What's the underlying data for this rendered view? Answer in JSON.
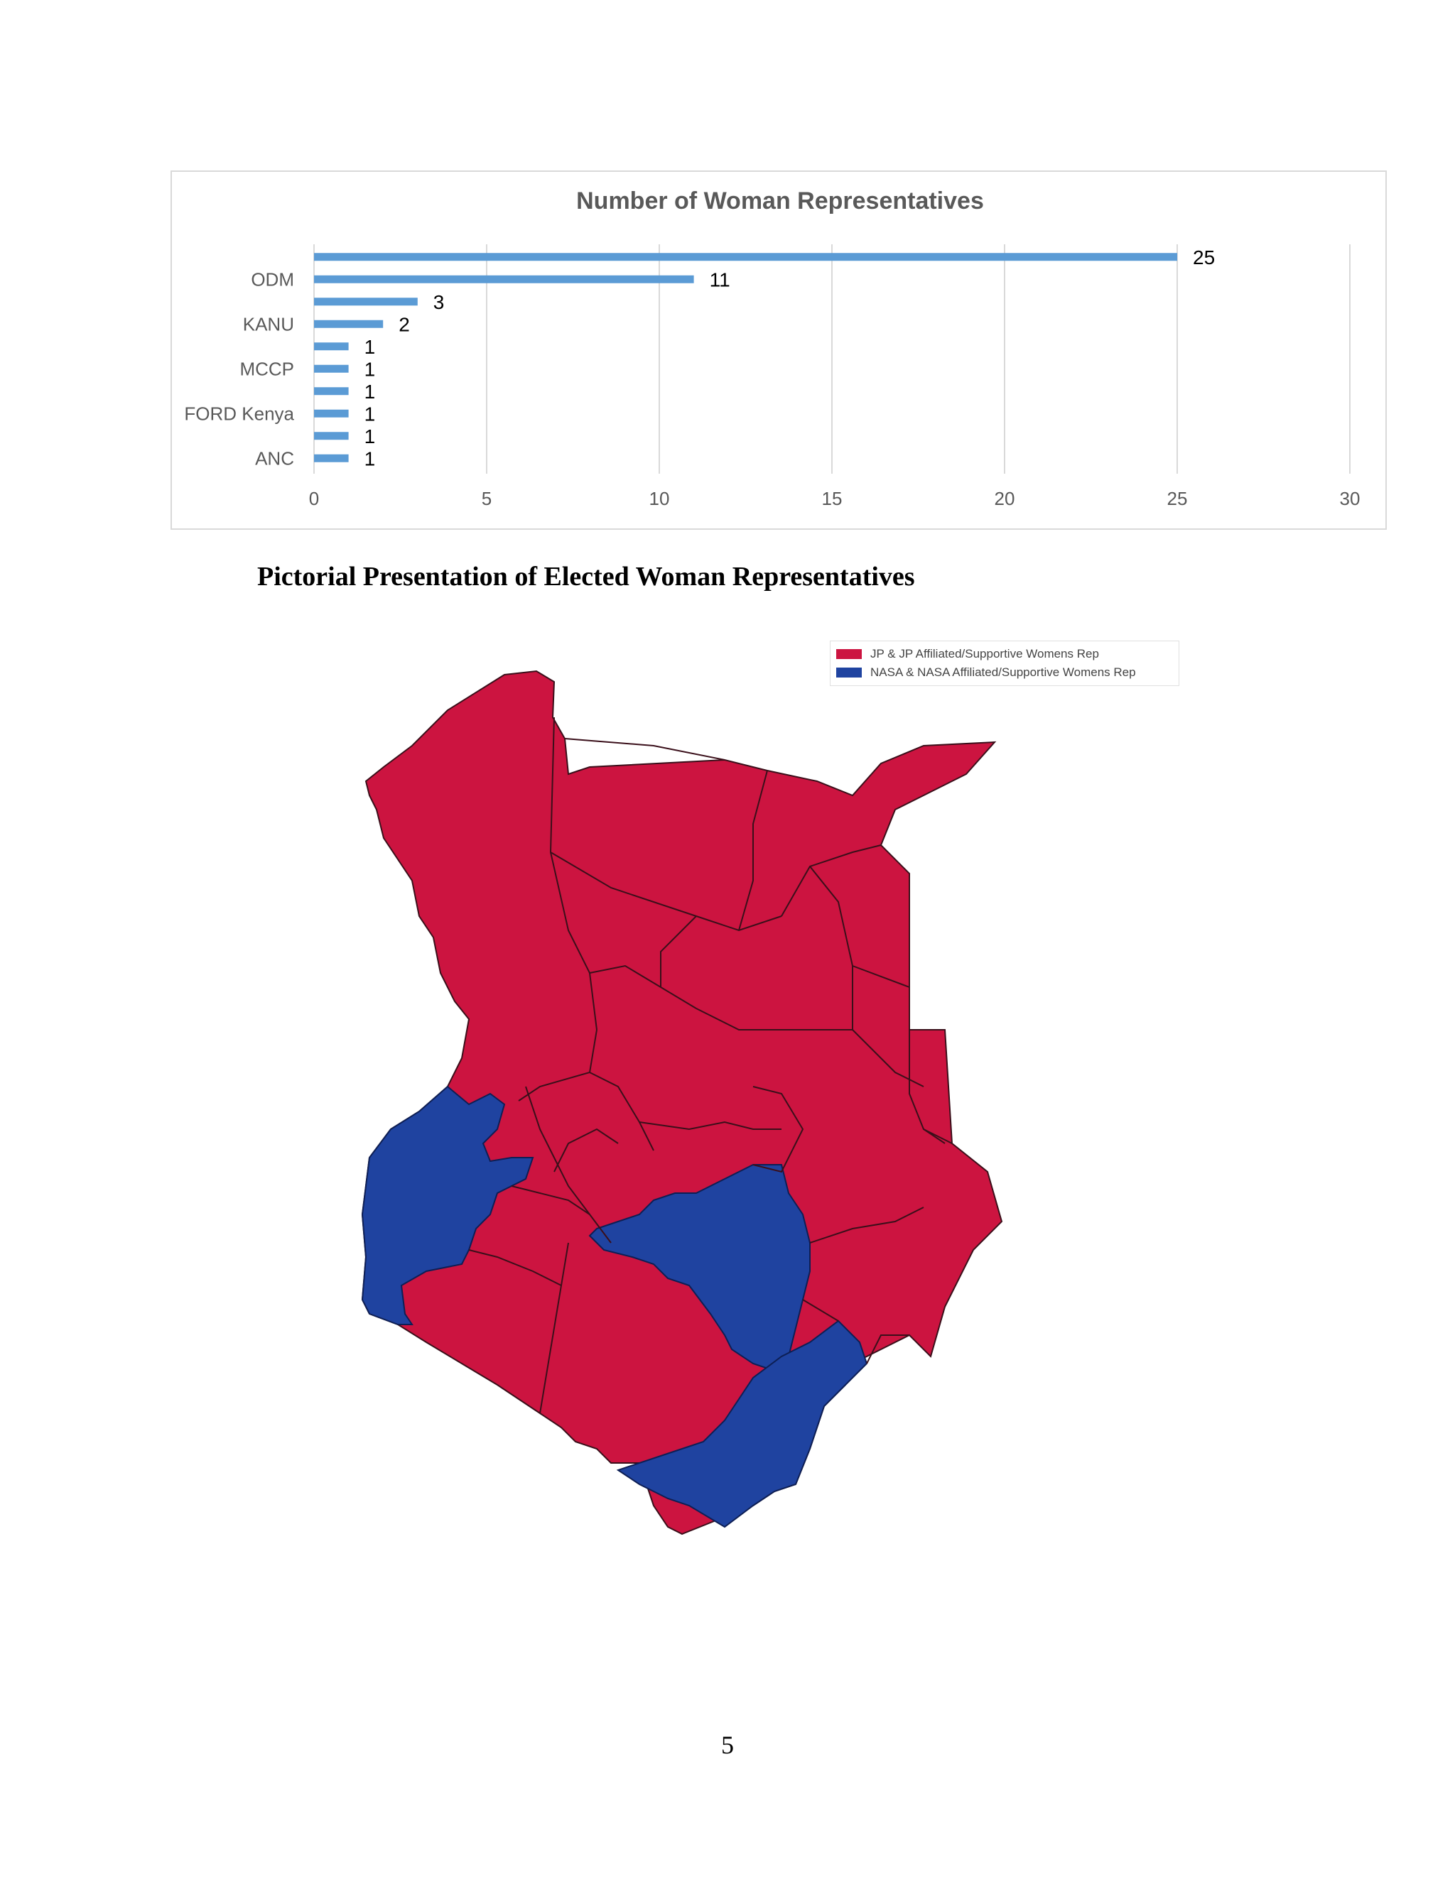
{
  "chart_data": {
    "type": "bar",
    "orientation": "horizontal",
    "title": "Number of Woman Representatives",
    "categories_shown": [
      "ODM",
      "KANU",
      "MCCP",
      "FORD Kenya",
      "ANC"
    ],
    "values": [
      25,
      11,
      3,
      2,
      1,
      1,
      1,
      1,
      1,
      1
    ],
    "xlim": [
      0,
      30
    ],
    "xticks": [
      "0",
      "5",
      "10",
      "15",
      "20",
      "25",
      "30"
    ],
    "grid": true,
    "legend": "none",
    "bar_color": "#5b9bd5"
  },
  "document": {
    "heading": "Pictorial  Presentation of Elected Woman  Representatives",
    "page_number": "5"
  },
  "map": {
    "legend": [
      {
        "label": "JP & JP Affiliated/Supportive Womens Rep",
        "color": "#cc1440"
      },
      {
        "label": "NASA & NASA Affiliated/Supportive Womens Rep",
        "color": "#1f43a0"
      }
    ],
    "border_color": "#3a0f1a"
  }
}
